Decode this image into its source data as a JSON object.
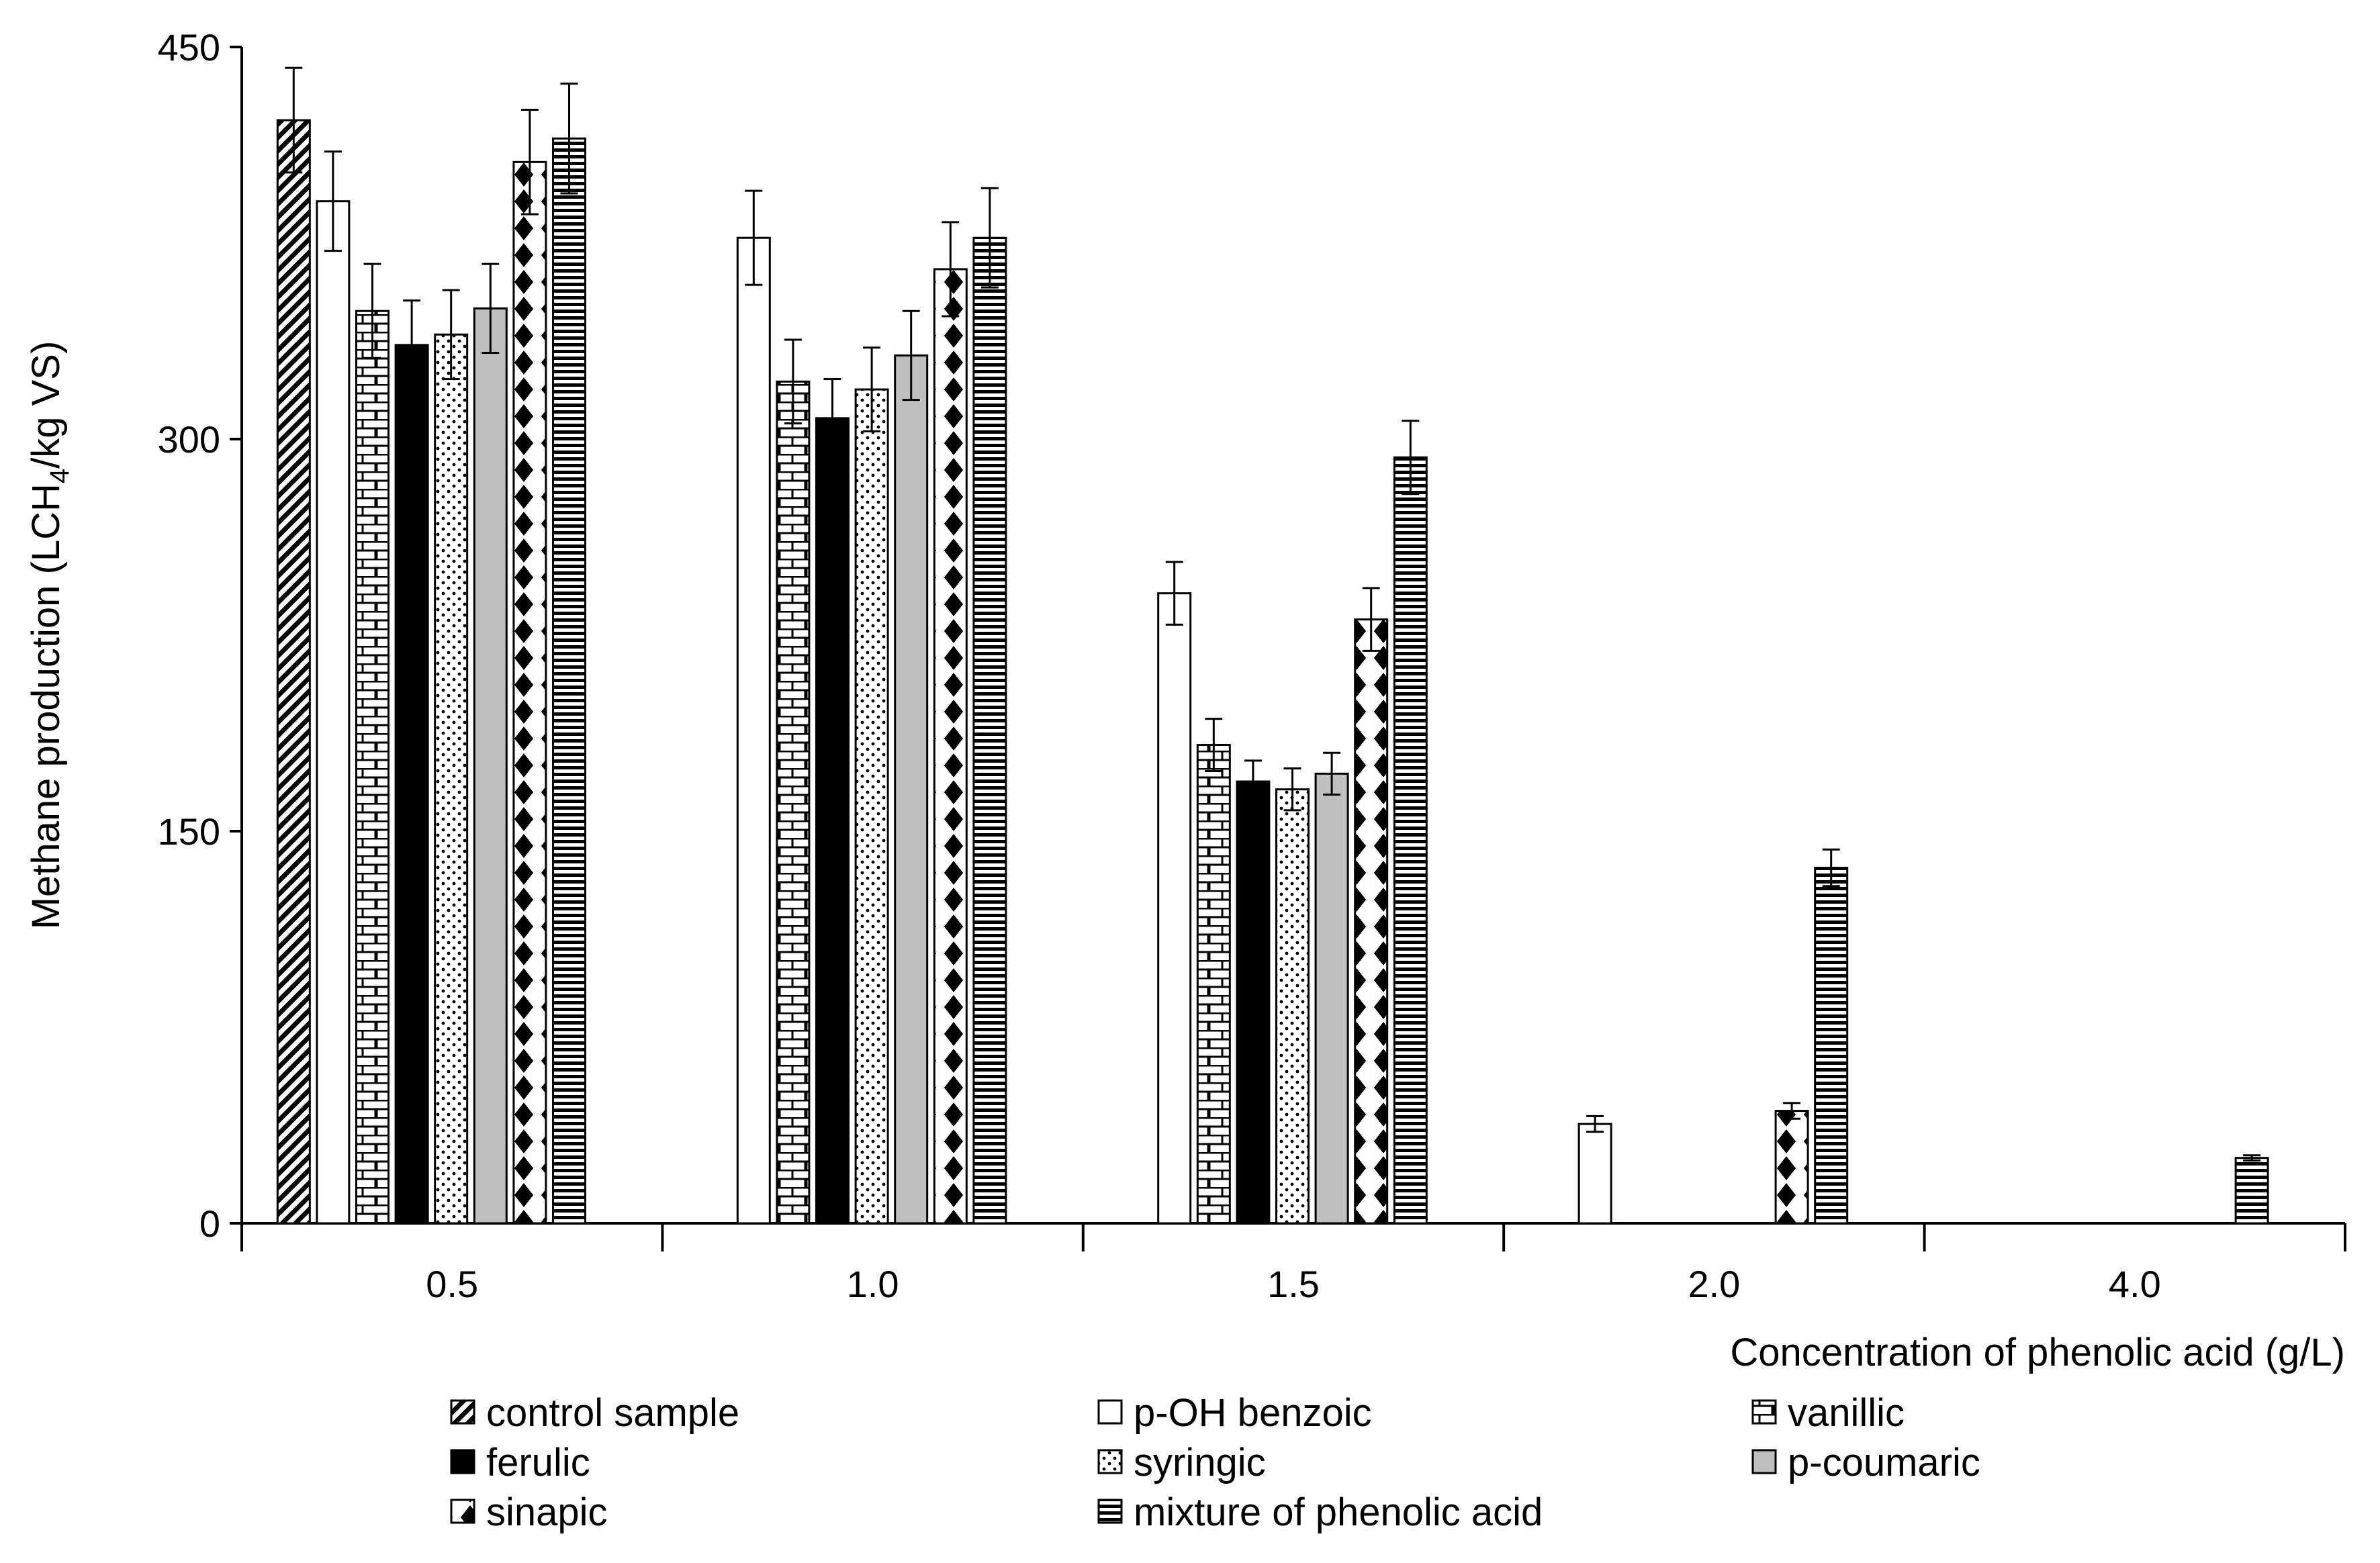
{
  "chart_data": {
    "type": "bar",
    "title": "",
    "ylabel": {
      "prefix": "Methane production (LCH",
      "sub": "4",
      "suffix": "/kg VS)"
    },
    "xlabel": "Concentration of phenolic acid (g/L)",
    "ylim": [
      0,
      450
    ],
    "yticks": [
      0,
      150,
      300,
      450
    ],
    "categories": [
      "0.5",
      "1.0",
      "1.5",
      "2.0",
      "4.0"
    ],
    "grid": false,
    "legend_position": "bottom",
    "control": {
      "name": "control sample",
      "value": 422,
      "error": 20
    },
    "series": [
      {
        "name": "p-OH benzoic",
        "values": [
          391,
          377,
          241,
          38,
          null
        ],
        "errors": [
          19,
          18,
          12,
          3,
          null
        ]
      },
      {
        "name": "vanillic",
        "values": [
          349,
          322,
          183,
          null,
          null
        ],
        "errors": [
          18,
          16,
          10,
          null,
          null
        ]
      },
      {
        "name": "ferulic",
        "values": [
          336,
          308,
          169,
          null,
          null
        ],
        "errors": [
          17,
          15,
          8,
          null,
          null
        ]
      },
      {
        "name": "syringic",
        "values": [
          340,
          319,
          166,
          null,
          null
        ],
        "errors": [
          17,
          16,
          8,
          null,
          null
        ]
      },
      {
        "name": "p-coumaric",
        "values": [
          350,
          332,
          172,
          null,
          null
        ],
        "errors": [
          17,
          17,
          8,
          null,
          null
        ]
      },
      {
        "name": "sinapic",
        "values": [
          406,
          365,
          231,
          43,
          null
        ],
        "errors": [
          20,
          18,
          12,
          3,
          null
        ]
      },
      {
        "name": "mixture of phenolic acid",
        "values": [
          415,
          377,
          293,
          136,
          25
        ],
        "errors": [
          21,
          19,
          14,
          7,
          1
        ]
      }
    ]
  },
  "legend": [
    "control sample",
    "p-OH benzoic",
    "vanillic",
    "ferulic",
    "syringic",
    "p-coumaric",
    "sinapic",
    "mixture of phenolic acid"
  ]
}
